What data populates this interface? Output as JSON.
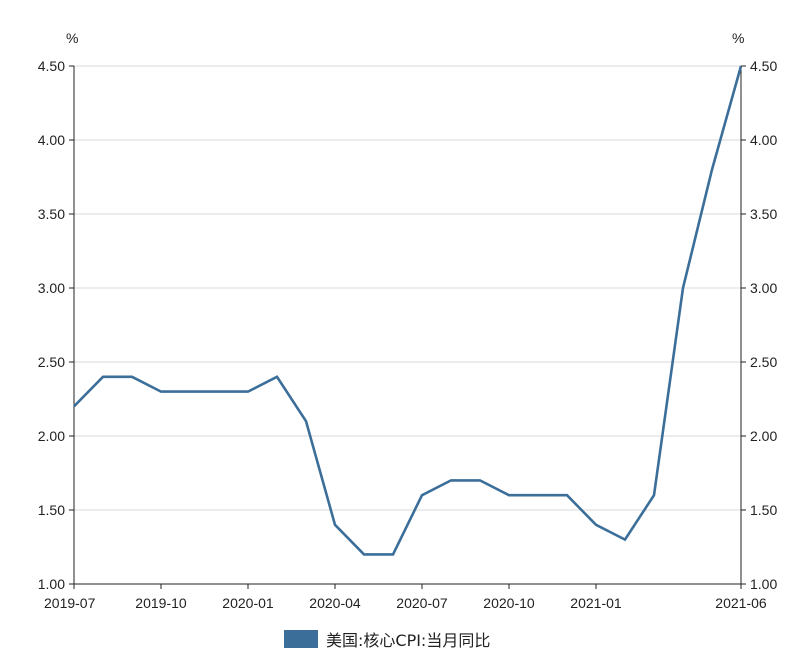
{
  "colors": {
    "series": "#3b6e99",
    "axis": "#222222",
    "grid": "#d9d9d9"
  },
  "chart_data": {
    "type": "line",
    "x": [
      "2019-07",
      "2019-08",
      "2019-09",
      "2019-10",
      "2019-11",
      "2019-12",
      "2020-01",
      "2020-02",
      "2020-03",
      "2020-04",
      "2020-05",
      "2020-06",
      "2020-07",
      "2020-08",
      "2020-09",
      "2020-10",
      "2020-11",
      "2020-12",
      "2021-01",
      "2021-02",
      "2021-03",
      "2021-04",
      "2021-05",
      "2021-06"
    ],
    "series": [
      {
        "name": "美国:核心CPI:当月同比",
        "values": [
          2.2,
          2.4,
          2.4,
          2.3,
          2.3,
          2.3,
          2.3,
          2.4,
          2.1,
          1.4,
          1.2,
          1.2,
          1.6,
          1.7,
          1.7,
          1.6,
          1.6,
          1.6,
          1.4,
          1.3,
          1.6,
          3.0,
          3.8,
          4.5
        ]
      }
    ],
    "x_tick_labels": [
      "2019-07",
      "2019-10",
      "2020-01",
      "2020-04",
      "2020-07",
      "2020-10",
      "2021-01",
      "2021-06"
    ],
    "y_tick_labels": [
      "1.00",
      "1.50",
      "2.00",
      "2.50",
      "3.00",
      "3.50",
      "4.00",
      "4.50"
    ],
    "ylim": [
      1.0,
      4.5
    ],
    "y_unit_left": "%",
    "y_unit_right": "%",
    "grid": true,
    "legend_position": "bottom-center"
  }
}
